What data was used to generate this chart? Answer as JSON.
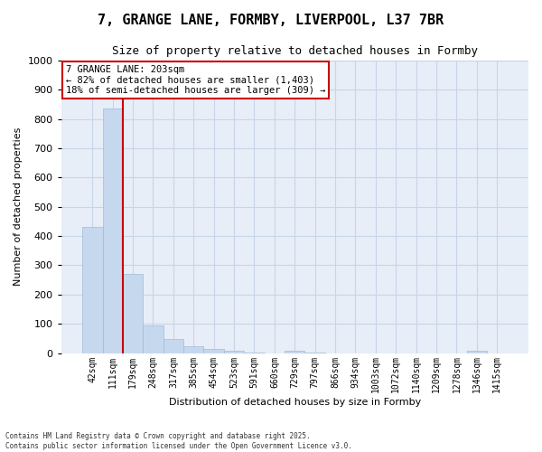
{
  "title": "7, GRANGE LANE, FORMBY, LIVERPOOL, L37 7BR",
  "subtitle": "Size of property relative to detached houses in Formby",
  "xlabel": "Distribution of detached houses by size in Formby",
  "ylabel": "Number of detached properties",
  "categories": [
    "42sqm",
    "111sqm",
    "179sqm",
    "248sqm",
    "317sqm",
    "385sqm",
    "454sqm",
    "523sqm",
    "591sqm",
    "660sqm",
    "729sqm",
    "797sqm",
    "866sqm",
    "934sqm",
    "1003sqm",
    "1072sqm",
    "1140sqm",
    "1209sqm",
    "1278sqm",
    "1346sqm",
    "1415sqm"
  ],
  "values": [
    430,
    835,
    270,
    95,
    47,
    22,
    13,
    7,
    2,
    0,
    8,
    2,
    0,
    0,
    0,
    0,
    0,
    0,
    0,
    7,
    0
  ],
  "bar_color": "#c5d8ee",
  "bar_edge_color": "#a0bcd8",
  "redline_index": 2,
  "redline_color": "#cc0000",
  "ylim": [
    0,
    1000
  ],
  "yticks": [
    0,
    100,
    200,
    300,
    400,
    500,
    600,
    700,
    800,
    900,
    1000
  ],
  "annotation_title": "7 GRANGE LANE: 203sqm",
  "annotation_line1": "← 82% of detached houses are smaller (1,403)",
  "annotation_line2": "18% of semi-detached houses are larger (309) →",
  "annotation_box_facecolor": "#ffffff",
  "annotation_box_edgecolor": "#cc0000",
  "footer_line1": "Contains HM Land Registry data © Crown copyright and database right 2025.",
  "footer_line2": "Contains public sector information licensed under the Open Government Licence v3.0.",
  "fig_facecolor": "#ffffff",
  "plot_facecolor": "#e8eef7",
  "grid_color": "#c8d4e8",
  "title_fontsize": 11,
  "subtitle_fontsize": 9,
  "axis_label_fontsize": 8,
  "tick_fontsize": 8,
  "xtick_fontsize": 7
}
